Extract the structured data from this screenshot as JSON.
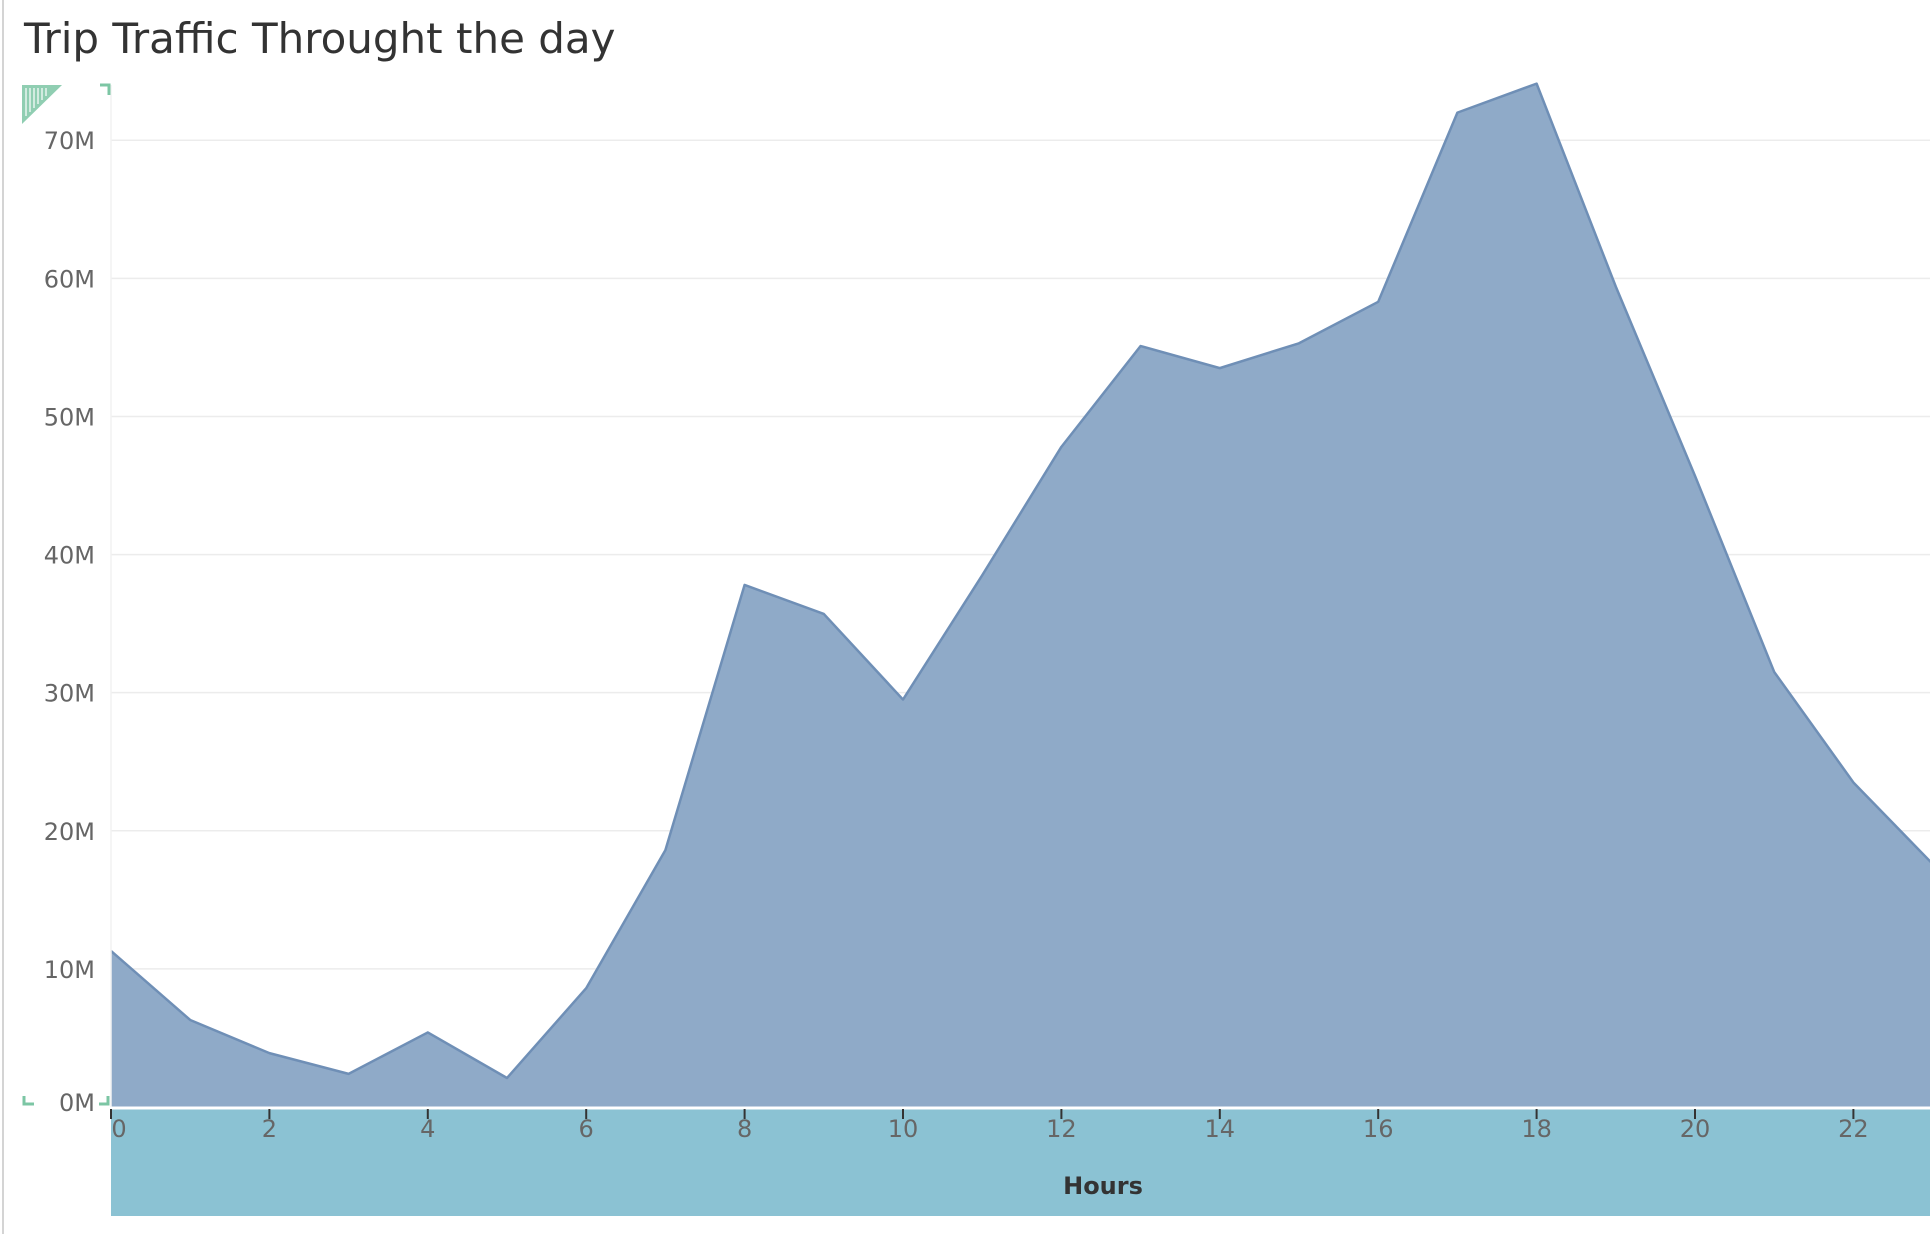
{
  "chart_data": {
    "type": "area",
    "title": "Trip Traffic Throught the day",
    "xlabel": "Hours",
    "ylabel": "",
    "x": [
      0,
      1,
      2,
      3,
      4,
      5,
      6,
      7,
      8,
      9,
      10,
      11,
      12,
      13,
      14,
      15,
      16,
      17,
      18,
      19,
      20,
      21,
      22,
      23
    ],
    "x_ticks": [
      "0",
      "2",
      "4",
      "6",
      "8",
      "10",
      "12",
      "14",
      "16",
      "18",
      "20",
      "22"
    ],
    "x_tick_values": [
      0,
      2,
      4,
      6,
      8,
      10,
      12,
      14,
      16,
      18,
      20,
      22
    ],
    "y_ticks": [
      "0M",
      "10M",
      "20M",
      "30M",
      "40M",
      "50M",
      "60M",
      "70M"
    ],
    "y_tick_values": [
      0,
      10,
      20,
      30,
      40,
      50,
      60,
      70
    ],
    "ylim": [
      0,
      74
    ],
    "y_unit": "M",
    "grid": true,
    "series": [
      {
        "values": [
          11.3,
          6.3,
          3.9,
          2.4,
          5.4,
          2.1,
          8.6,
          18.6,
          37.8,
          35.7,
          29.5,
          38.5,
          47.8,
          55.1,
          53.5,
          55.3,
          58.3,
          72.0,
          74.1,
          59.4,
          45.7,
          31.5,
          23.5,
          17.6
        ],
        "fill_color": "#8faac8",
        "line_color": "#6f8fb6"
      }
    ],
    "colors": {
      "area_fill": "#8faac8",
      "area_line": "#6f8fb6",
      "x_band": "#8bc2d3",
      "grid": "#ececec",
      "corner_marker": "#7cc6a4"
    }
  }
}
